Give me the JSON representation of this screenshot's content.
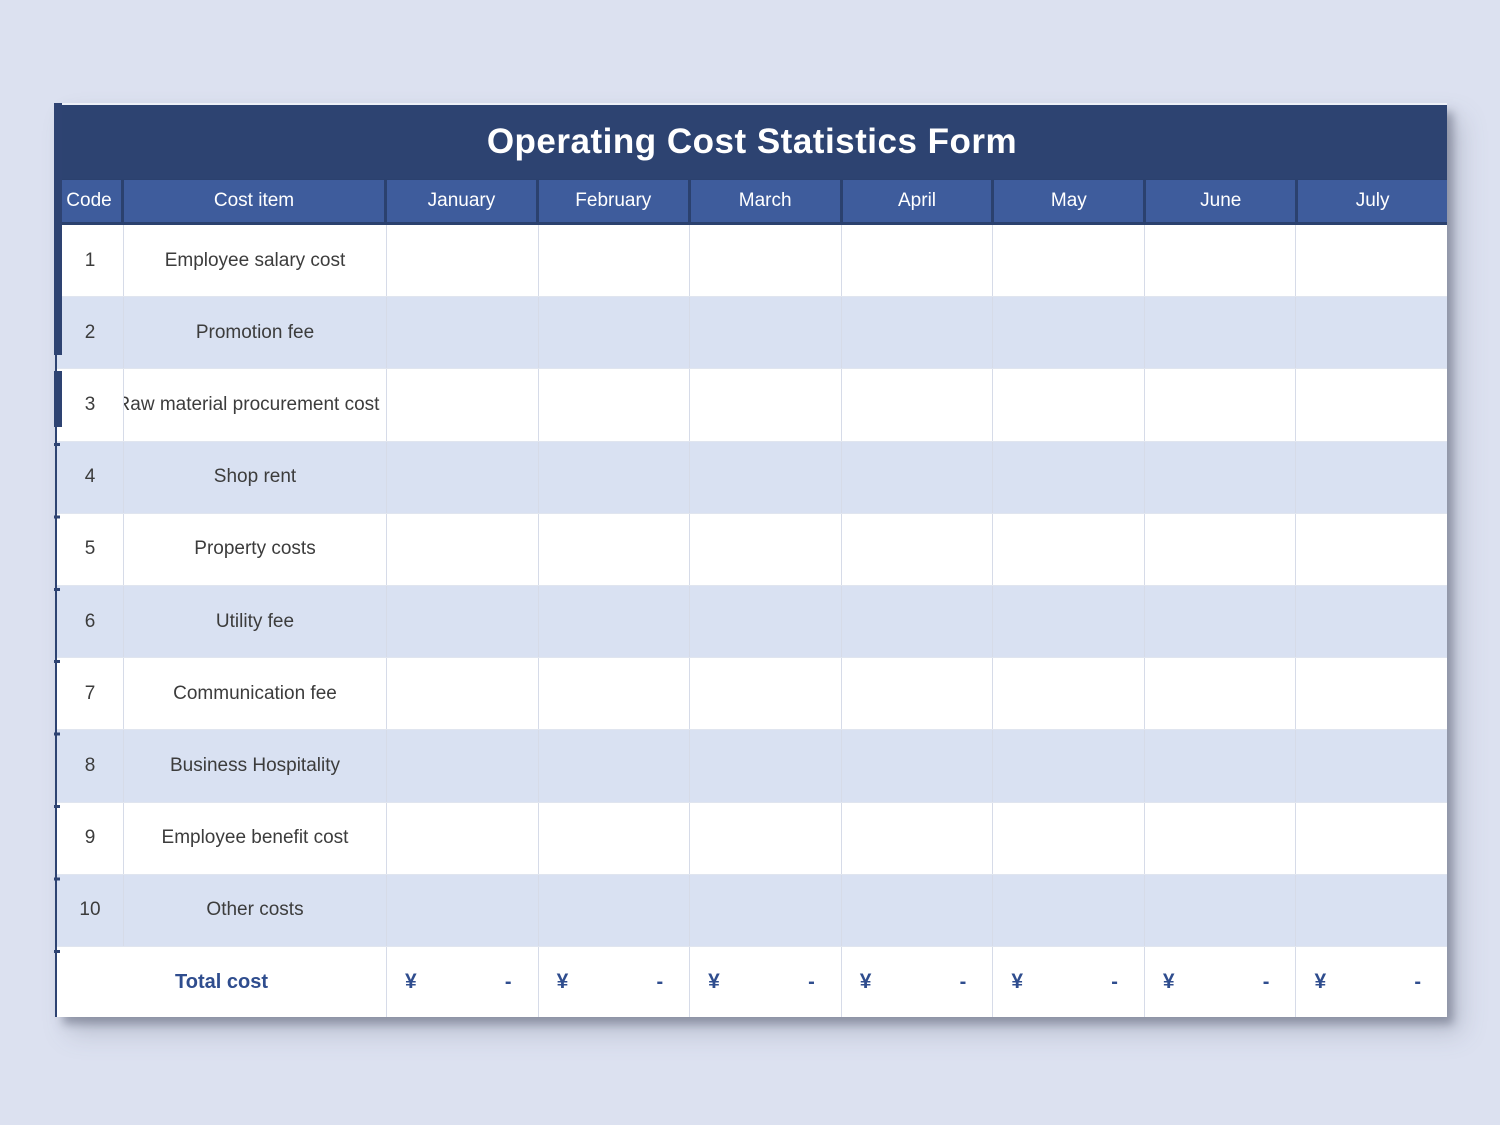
{
  "title": "Operating Cost Statistics Form",
  "columns": {
    "code": "Code",
    "cost_item": "Cost item",
    "months": [
      "January",
      "February",
      "March",
      "April",
      "May",
      "June",
      "July"
    ]
  },
  "rows": [
    {
      "code": "1",
      "item": "Employee salary cost"
    },
    {
      "code": "2",
      "item": "Promotion fee"
    },
    {
      "code": "3",
      "item": "Raw material procurement cost"
    },
    {
      "code": "4",
      "item": "Shop rent"
    },
    {
      "code": "5",
      "item": "Property costs"
    },
    {
      "code": "6",
      "item": "Utility fee"
    },
    {
      "code": "7",
      "item": "Communication fee"
    },
    {
      "code": "8",
      "item": "Business Hospitality"
    },
    {
      "code": "9",
      "item": "Employee benefit cost"
    },
    {
      "code": "10",
      "item": "Other costs"
    }
  ],
  "total": {
    "label": "Total cost",
    "currency": "¥",
    "amount": "-"
  },
  "colors": {
    "title_bar": "#2d4371",
    "header": "#3e5c9c",
    "header_border": "#2b416e",
    "row_alt": "#d9e1f2",
    "total_text": "#2f4d8e",
    "background": "#dce1f0"
  }
}
